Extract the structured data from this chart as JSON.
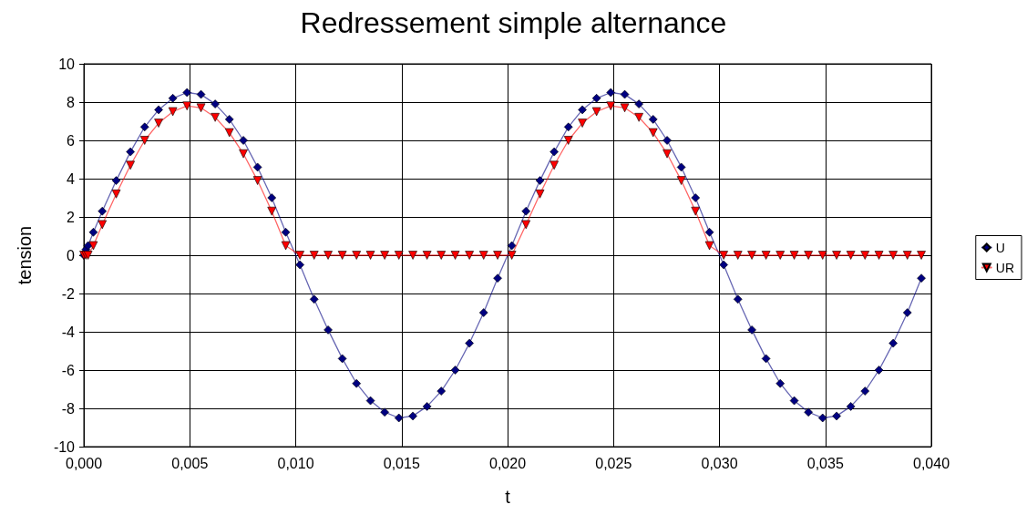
{
  "chart_data": {
    "type": "line",
    "title": "Redressement simple alternance",
    "xlabel": "t",
    "ylabel": "tension",
    "x": [
      0,
      0.0001,
      0.0002,
      0.00045,
      0.00087,
      0.00153,
      0.0022,
      0.00287,
      0.00353,
      0.0042,
      0.00487,
      0.00553,
      0.0062,
      0.00687,
      0.00753,
      0.0082,
      0.00887,
      0.00953,
      0.0102,
      0.01087,
      0.01153,
      0.0122,
      0.01287,
      0.01353,
      0.0142,
      0.01487,
      0.01553,
      0.0162,
      0.01687,
      0.01753,
      0.0182,
      0.01887,
      0.01953,
      0.0202,
      0.02087,
      0.02153,
      0.0222,
      0.02287,
      0.02353,
      0.0242,
      0.02487,
      0.02553,
      0.0262,
      0.02687,
      0.02753,
      0.0282,
      0.02887,
      0.02953,
      0.0302,
      0.03087,
      0.03153,
      0.0322,
      0.03287,
      0.03353,
      0.0342,
      0.03487,
      0.03553,
      0.0362,
      0.03687,
      0.03753,
      0.0382,
      0.03887,
      0.03953
    ],
    "series": [
      {
        "name": "U",
        "color": "#000080",
        "marker": "diamond",
        "values": [
          0,
          0.3,
          0.5,
          1.2,
          2.3,
          3.9,
          5.4,
          6.7,
          7.6,
          8.2,
          8.5,
          8.4,
          7.9,
          7.1,
          6.0,
          4.6,
          3.0,
          1.2,
          -0.5,
          -2.3,
          -3.9,
          -5.4,
          -6.7,
          -7.6,
          -8.2,
          -8.5,
          -8.4,
          -7.9,
          -7.1,
          -6.0,
          -4.6,
          -3.0,
          -1.2,
          0.5,
          2.3,
          3.9,
          5.4,
          6.7,
          7.6,
          8.2,
          8.5,
          8.4,
          7.9,
          7.1,
          6.0,
          4.6,
          3.0,
          1.2,
          -0.5,
          -2.3,
          -3.9,
          -5.4,
          -6.7,
          -7.6,
          -8.2,
          -8.5,
          -8.4,
          -7.9,
          -7.1,
          -6.0,
          -4.6,
          -3.0,
          -1.2
        ]
      },
      {
        "name": "UR",
        "color": "#ff0000",
        "marker": "triangle",
        "values": [
          0,
          0,
          0,
          0.5,
          1.6,
          3.2,
          4.7,
          6.0,
          6.9,
          7.5,
          7.8,
          7.7,
          7.2,
          6.4,
          5.3,
          3.9,
          2.3,
          0.5,
          0,
          0,
          0,
          0,
          0,
          0,
          0,
          0,
          0,
          0,
          0,
          0,
          0,
          0,
          0,
          0,
          1.6,
          3.2,
          4.7,
          6.0,
          6.9,
          7.5,
          7.8,
          7.7,
          7.2,
          6.4,
          5.3,
          3.9,
          2.3,
          0.5,
          0,
          0,
          0,
          0,
          0,
          0,
          0,
          0,
          0,
          0,
          0,
          0,
          0,
          0,
          0
        ]
      }
    ],
    "xlim": [
      0,
      0.04
    ],
    "xticks": [
      {
        "value": 0,
        "label": "0,000"
      },
      {
        "value": 0.005,
        "label": "0,005"
      },
      {
        "value": 0.01,
        "label": "0,010"
      },
      {
        "value": 0.015,
        "label": "0,015"
      },
      {
        "value": 0.02,
        "label": "0,020"
      },
      {
        "value": 0.025,
        "label": "0,025"
      },
      {
        "value": 0.03,
        "label": "0,030"
      },
      {
        "value": 0.035,
        "label": "0,035"
      },
      {
        "value": 0.04,
        "label": "0,040"
      }
    ],
    "ylim": [
      -10,
      10
    ],
    "yticks": [
      -10,
      -8,
      -6,
      -4,
      -2,
      0,
      2,
      4,
      6,
      8,
      10
    ],
    "grid": true,
    "legend": "right",
    "line_style": "solid"
  }
}
